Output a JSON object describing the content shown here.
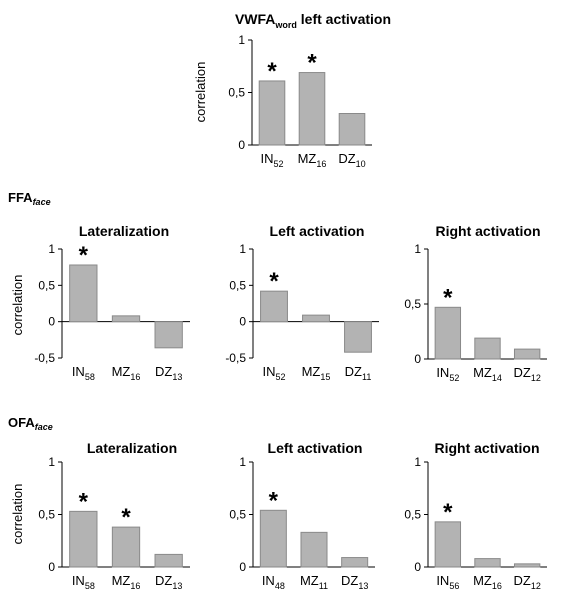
{
  "sections": [
    {
      "name": "FFA",
      "sub": "face"
    },
    {
      "name": "OFA",
      "sub": "face"
    }
  ],
  "chart_data": [
    {
      "type": "bar",
      "title_parts": [
        [
          "VWFA",
          ""
        ],
        [
          "word",
          "sub"
        ],
        [
          " left activation",
          ""
        ]
      ],
      "ylabel": "correlation",
      "ylim": [
        0,
        1
      ],
      "yticks": [
        "0",
        "0,5",
        "1"
      ],
      "categories": [
        [
          "IN",
          "52"
        ],
        [
          "MZ",
          "16"
        ],
        [
          "DZ",
          "10"
        ]
      ],
      "values": [
        0.61,
        0.69,
        0.3
      ],
      "significant": [
        true,
        true,
        false
      ],
      "bar_color": "#b3b3b3"
    },
    {
      "type": "bar",
      "title_parts": [
        [
          "Lateralization",
          ""
        ]
      ],
      "ylabel": "correlation",
      "ylim": [
        -0.5,
        1
      ],
      "yticks": [
        "-0,5",
        "0",
        "0,5",
        "1"
      ],
      "categories": [
        [
          "IN",
          "58"
        ],
        [
          "MZ",
          "16"
        ],
        [
          "DZ",
          "13"
        ]
      ],
      "values": [
        0.78,
        0.08,
        -0.36
      ],
      "significant": [
        true,
        false,
        false
      ],
      "bar_color": "#b3b3b3"
    },
    {
      "type": "bar",
      "title_parts": [
        [
          "Left activation",
          ""
        ]
      ],
      "ylabel": "",
      "ylim": [
        -0.5,
        1
      ],
      "yticks": [
        "-0,5",
        "0",
        "0,5",
        "1"
      ],
      "categories": [
        [
          "IN",
          "52"
        ],
        [
          "MZ",
          "15"
        ],
        [
          "DZ",
          "11"
        ]
      ],
      "values": [
        0.42,
        0.09,
        -0.42
      ],
      "significant": [
        true,
        false,
        false
      ],
      "bar_color": "#b3b3b3"
    },
    {
      "type": "bar",
      "title_parts": [
        [
          "Right activation",
          ""
        ]
      ],
      "ylabel": "",
      "ylim": [
        0,
        1
      ],
      "yticks": [
        "0",
        "0,5",
        "1"
      ],
      "categories": [
        [
          "IN",
          "52"
        ],
        [
          "MZ",
          "14"
        ],
        [
          "DZ",
          "12"
        ]
      ],
      "values": [
        0.47,
        0.19,
        0.09
      ],
      "significant": [
        true,
        false,
        false
      ],
      "bar_color": "#b3b3b3"
    },
    {
      "type": "bar",
      "title_parts": [
        [
          "Lateralization",
          ""
        ]
      ],
      "ylabel": "correlation",
      "ylim": [
        0,
        1
      ],
      "yticks": [
        "0",
        "0,5",
        "1"
      ],
      "categories": [
        [
          "IN",
          "58"
        ],
        [
          "MZ",
          "16"
        ],
        [
          "DZ",
          "13"
        ]
      ],
      "values": [
        0.53,
        0.38,
        0.12
      ],
      "significant": [
        true,
        true,
        false
      ],
      "bar_color": "#b3b3b3"
    },
    {
      "type": "bar",
      "title_parts": [
        [
          "Left activation",
          ""
        ]
      ],
      "ylabel": "",
      "ylim": [
        0,
        1
      ],
      "yticks": [
        "0",
        "0,5",
        "1"
      ],
      "categories": [
        [
          "IN",
          "48"
        ],
        [
          "MZ",
          "11"
        ],
        [
          "DZ",
          "13"
        ]
      ],
      "values": [
        0.54,
        0.33,
        0.09
      ],
      "significant": [
        true,
        false,
        false
      ],
      "bar_color": "#b3b3b3"
    },
    {
      "type": "bar",
      "title_parts": [
        [
          "Right activation",
          ""
        ]
      ],
      "ylabel": "",
      "ylim": [
        0,
        1
      ],
      "yticks": [
        "0",
        "0,5",
        "1"
      ],
      "categories": [
        [
          "IN",
          "56"
        ],
        [
          "MZ",
          "16"
        ],
        [
          "DZ",
          "12"
        ]
      ],
      "values": [
        0.43,
        0.08,
        0.03
      ],
      "significant": [
        true,
        false,
        false
      ],
      "bar_color": "#b3b3b3"
    }
  ]
}
